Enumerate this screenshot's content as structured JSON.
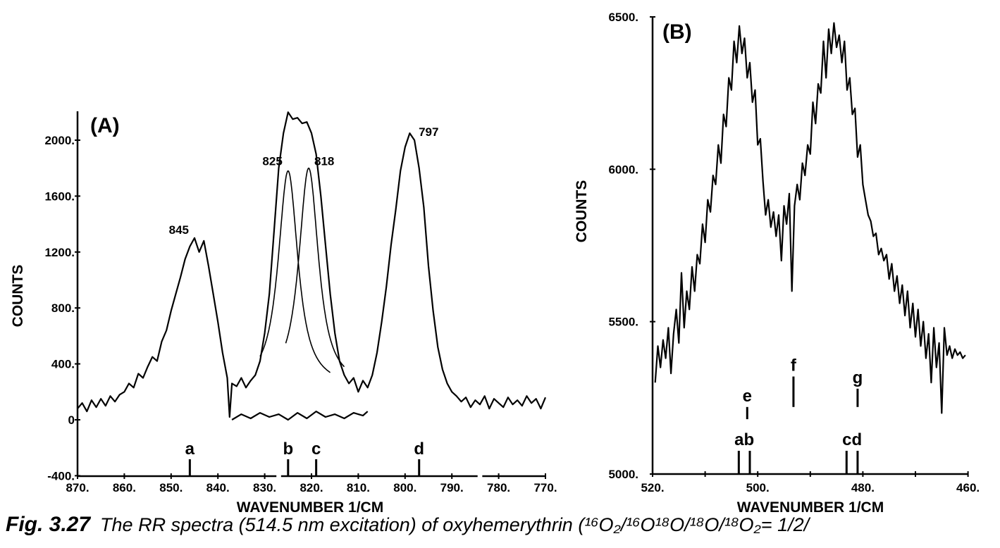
{
  "caption": {
    "label": "Fig. 3.27",
    "text": "The RR spectra (514.5 nm excitation) of oxyhemerythrin (¹⁶O₂/¹⁶O¹⁸O/¹⁸O/¹⁸O₂= 1/2/"
  },
  "chart_data": [
    {
      "type": "line",
      "panel_label": "(A)",
      "xlabel": "WAVENUMBER 1/CM",
      "ylabel": "COUNTS",
      "xlim": [
        870,
        770
      ],
      "ylim": [
        -400,
        2200
      ],
      "x_ticks": [
        "870.",
        "860.",
        "850.",
        "840.",
        "830.",
        "820.",
        "810.",
        "800.",
        "790.",
        "780.",
        "770."
      ],
      "x_tick_values": [
        870,
        860,
        850,
        840,
        830,
        820,
        810,
        800,
        790,
        780,
        770
      ],
      "y_ticks": [
        "2000.",
        "1600.",
        "1200.",
        "800.",
        "400.",
        "0",
        "-400."
      ],
      "y_tick_values": [
        2000,
        1600,
        1200,
        800,
        400,
        0,
        -400
      ],
      "grid": false,
      "series": [
        {
          "role": "spectrum",
          "x": [
            870,
            869,
            868,
            867,
            866,
            865,
            864,
            863,
            862,
            861,
            860,
            859,
            858,
            857,
            856,
            855,
            854,
            853,
            852,
            851,
            850,
            849,
            848,
            847,
            846,
            845,
            844,
            843,
            842,
            841,
            840,
            839,
            838,
            837.5,
            837,
            836,
            835,
            834,
            833,
            832,
            831,
            830,
            829,
            828,
            827,
            826,
            825,
            824,
            823,
            822,
            821,
            820,
            819,
            818,
            817,
            816,
            815,
            814,
            813,
            812,
            811,
            810,
            809,
            808,
            807,
            806,
            805,
            804,
            803,
            802,
            801,
            800,
            799,
            798,
            797,
            796,
            795,
            794,
            793,
            792,
            791,
            790,
            789,
            788,
            787,
            786,
            785,
            784,
            783,
            782,
            781,
            780,
            779,
            778,
            777,
            776,
            775,
            774,
            773,
            772,
            771,
            770
          ],
          "y": [
            80,
            120,
            60,
            140,
            90,
            150,
            100,
            170,
            130,
            180,
            200,
            260,
            230,
            330,
            300,
            380,
            450,
            420,
            560,
            640,
            780,
            900,
            1020,
            1150,
            1240,
            1300,
            1200,
            1280,
            1100,
            900,
            700,
            480,
            300,
            20,
            260,
            240,
            300,
            230,
            280,
            320,
            420,
            620,
            900,
            1350,
            1800,
            2050,
            2200,
            2150,
            2160,
            2120,
            2130,
            2050,
            1900,
            1600,
            1250,
            900,
            620,
            420,
            320,
            260,
            300,
            200,
            280,
            230,
            320,
            480,
            700,
            950,
            1250,
            1500,
            1780,
            1950,
            2050,
            2000,
            1800,
            1520,
            1100,
            780,
            520,
            360,
            260,
            200,
            170,
            130,
            160,
            90,
            140,
            110,
            170,
            80,
            150,
            120,
            90,
            160,
            110,
            140,
            100,
            170,
            120,
            150,
            80,
            160
          ]
        },
        {
          "role": "residual",
          "x": [
            837,
            835,
            833,
            831,
            829,
            827,
            825,
            823,
            821,
            819,
            817,
            815,
            813,
            811,
            809,
            808
          ],
          "y": [
            0,
            40,
            10,
            50,
            20,
            40,
            0,
            50,
            10,
            60,
            20,
            40,
            10,
            50,
            30,
            60
          ]
        },
        {
          "role": "fit",
          "name": "825",
          "center": 825,
          "amplitude": 1780,
          "halfwidth": 2.6,
          "range": [
            831,
            816
          ]
        },
        {
          "role": "fit",
          "name": "818",
          "center": 820.6,
          "amplitude": 1800,
          "halfwidth": 2.6,
          "range": [
            825.5,
            813
          ]
        }
      ],
      "annotations": [
        {
          "text": "845",
          "x": 845,
          "y": 1300
        },
        {
          "text": "825",
          "x": 825,
          "y": 1780
        },
        {
          "text": "818",
          "x": 820.6,
          "y": 1800
        },
        {
          "text": "797",
          "x": 798,
          "y": 2050
        }
      ],
      "sticks": [
        {
          "label": "a",
          "x": 846
        },
        {
          "label": "b",
          "x": 825
        },
        {
          "label": "c",
          "x": 819
        },
        {
          "label": "d",
          "x": 797
        }
      ]
    },
    {
      "type": "line",
      "panel_label": "(B)",
      "xlabel": "WAVENUMBER 1/CM",
      "ylabel": "COUNTS",
      "xlim": [
        520,
        460
      ],
      "ylim": [
        5000,
        6500
      ],
      "x_ticks": [
        "520.",
        "500.",
        "480.",
        "460."
      ],
      "x_tick_values": [
        520,
        500,
        480,
        460
      ],
      "x_minor_ticks": [
        510,
        490,
        470
      ],
      "y_ticks": [
        "6500.",
        "6000.",
        "5500.",
        "5000."
      ],
      "y_tick_values": [
        6500,
        6000,
        5500,
        5000
      ],
      "grid": false,
      "series": [
        {
          "role": "spectrum",
          "x": [
            519.5,
            519,
            518.5,
            518,
            517.5,
            517,
            516.5,
            516,
            515.5,
            515,
            514.5,
            514,
            513.5,
            513,
            512.5,
            512,
            511.5,
            511,
            510.5,
            510,
            509.5,
            509,
            508.5,
            508,
            507.5,
            507,
            506.5,
            506,
            505.5,
            505,
            504.5,
            504,
            503.5,
            503,
            502.5,
            502,
            501.5,
            501,
            500.5,
            500,
            499.5,
            499,
            498.5,
            498,
            497.5,
            497,
            496.5,
            496,
            495.5,
            495,
            494.5,
            494,
            493.5,
            493,
            492.5,
            492,
            491.5,
            491,
            490.5,
            490,
            489.5,
            489,
            488.5,
            488,
            487.5,
            487,
            486.5,
            486,
            485.5,
            485,
            484.5,
            484,
            483.5,
            483,
            482.5,
            482,
            481.5,
            481,
            480.5,
            480,
            479.5,
            479,
            478.5,
            478,
            477.5,
            477,
            476.5,
            476,
            475.5,
            475,
            474.5,
            474,
            473.5,
            473,
            472.5,
            472,
            471.5,
            471,
            470.5,
            470,
            469.5,
            469,
            468.5,
            468,
            467.5,
            467,
            466.5,
            466,
            465.5,
            465,
            464.5,
            464,
            463.5,
            463,
            462.5,
            462,
            461.5,
            461,
            460.5
          ],
          "y": [
            5300,
            5420,
            5350,
            5440,
            5380,
            5480,
            5330,
            5460,
            5540,
            5430,
            5660,
            5480,
            5600,
            5540,
            5680,
            5600,
            5720,
            5690,
            5820,
            5760,
            5900,
            5860,
            5980,
            5950,
            6080,
            6020,
            6180,
            6140,
            6300,
            6260,
            6420,
            6350,
            6470,
            6380,
            6430,
            6300,
            6350,
            6220,
            6260,
            6080,
            6100,
            5960,
            5850,
            5900,
            5810,
            5860,
            5780,
            5850,
            5700,
            5880,
            5820,
            5920,
            5600,
            5880,
            5950,
            5900,
            6020,
            5980,
            6080,
            6050,
            6220,
            6150,
            6280,
            6250,
            6420,
            6300,
            6460,
            6380,
            6480,
            6400,
            6440,
            6350,
            6420,
            6260,
            6300,
            6180,
            6200,
            6040,
            6080,
            5950,
            5900,
            5850,
            5830,
            5780,
            5790,
            5720,
            5740,
            5700,
            5720,
            5640,
            5690,
            5600,
            5650,
            5560,
            5620,
            5520,
            5600,
            5480,
            5560,
            5450,
            5540,
            5420,
            5500,
            5380,
            5460,
            5300,
            5480,
            5350,
            5430,
            5200,
            5480,
            5390,
            5420,
            5380,
            5410,
            5390,
            5400,
            5380,
            5390
          ]
        }
      ],
      "sticks_upper": [
        {
          "label": "e",
          "x": 502,
          "top": 5220,
          "bottom": 5180
        },
        {
          "label": "f",
          "x": 493.2,
          "top": 5320,
          "bottom": 5220
        },
        {
          "label": "g",
          "x": 481,
          "top": 5280,
          "bottom": 5220
        }
      ],
      "sticks_lower": [
        {
          "label": "a",
          "x": 503.6
        },
        {
          "label": "b",
          "x": 501.5
        },
        {
          "label": "c",
          "x": 483.1
        },
        {
          "label": "d",
          "x": 481
        }
      ],
      "stick_group_labels": [
        "ab",
        "cd"
      ]
    }
  ]
}
